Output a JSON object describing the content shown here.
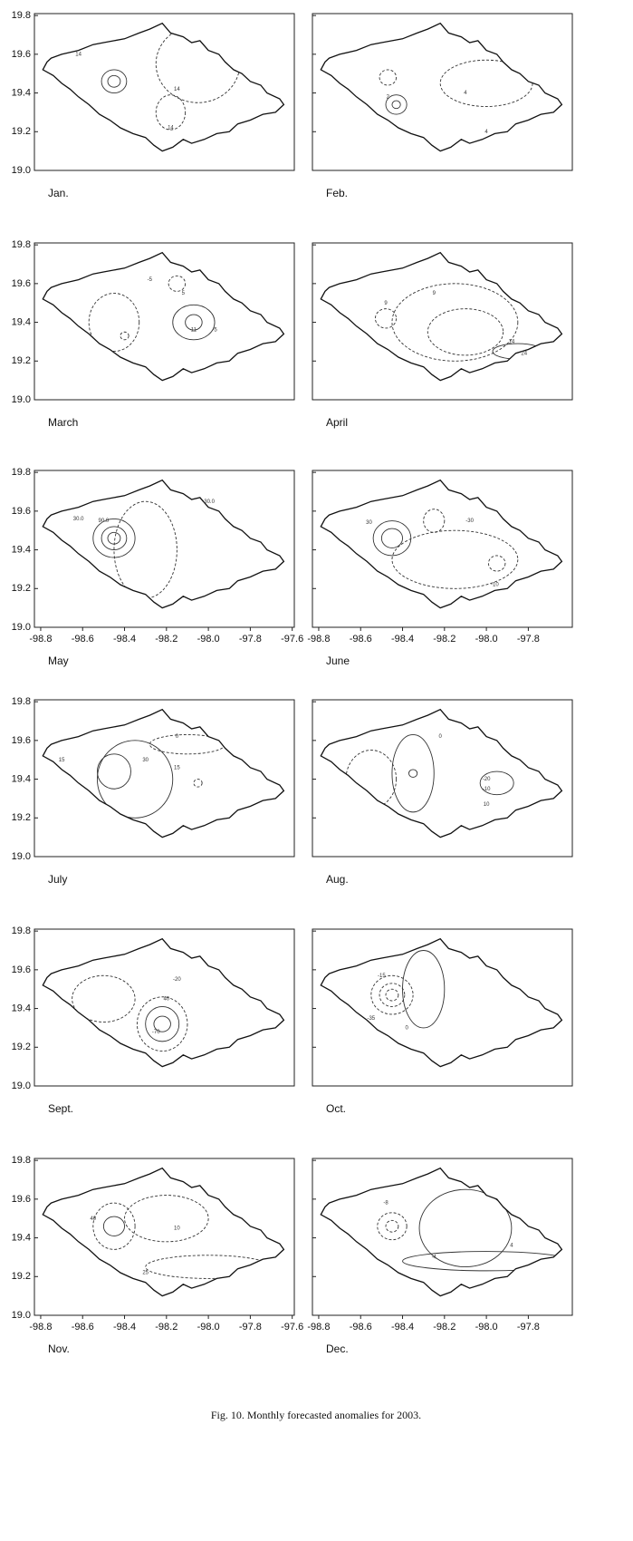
{
  "figure": {
    "xlim": [
      -98.83,
      -97.59
    ],
    "ylim": [
      19.0,
      19.81
    ],
    "yticks": [
      {
        "value": 19.0,
        "label": "19.0"
      },
      19.2,
      19.4,
      19.6,
      19.8
    ],
    "panels": [
      {
        "label": "Jan.",
        "contour_labels": [
          "14",
          "14",
          "14"
        ]
      },
      {
        "label": "Feb.",
        "contour_labels": [
          "2",
          "4",
          "4"
        ]
      },
      {
        "label": "March",
        "contour_labels": [
          "-5",
          "5",
          "11",
          "-5"
        ]
      },
      {
        "label": "April",
        "contour_labels": [
          "9",
          "9",
          "14",
          "24"
        ]
      },
      {
        "label": "May",
        "contour_labels": [
          "30.0",
          "90.0",
          "-30.0"
        ],
        "xticks": [
          -98.8,
          -98.6,
          -98.4,
          -98.2,
          {
            "value": -98.0,
            "label": "-98.0"
          },
          -97.8,
          -97.6
        ]
      },
      {
        "label": "June",
        "contour_labels": [
          "30",
          "-30",
          "-10"
        ],
        "xticks": [
          -98.8,
          -98.6,
          -98.4,
          -98.2,
          {
            "value": -98.0,
            "label": "-98.0"
          },
          -97.8
        ]
      },
      {
        "label": "July",
        "contour_labels": [
          "15",
          "30",
          "0",
          "15"
        ]
      },
      {
        "label": "Aug.",
        "contour_labels": [
          "0",
          "-20",
          "-10",
          "10"
        ]
      },
      {
        "label": "Sept.",
        "contour_labels": [
          "-20",
          "40",
          "-70"
        ]
      },
      {
        "label": "Oct.",
        "contour_labels": [
          "-15",
          "-35",
          "0"
        ]
      },
      {
        "label": "Nov.",
        "contour_labels": [
          "40",
          "10",
          "25"
        ],
        "xticks": [
          -98.8,
          -98.6,
          -98.4,
          -98.2,
          {
            "value": -98.0,
            "label": "-98.0"
          },
          -97.8,
          -97.6
        ]
      },
      {
        "label": "Dec.",
        "contour_labels": [
          "-8",
          "-4",
          "4"
        ],
        "xticks": [
          -98.8,
          -98.6,
          -98.4,
          -98.2,
          {
            "value": -98.0,
            "label": "-98.0"
          },
          -97.8
        ]
      }
    ]
  },
  "caption": "Fig. 10. Monthly forecasted anomalies for 2003."
}
